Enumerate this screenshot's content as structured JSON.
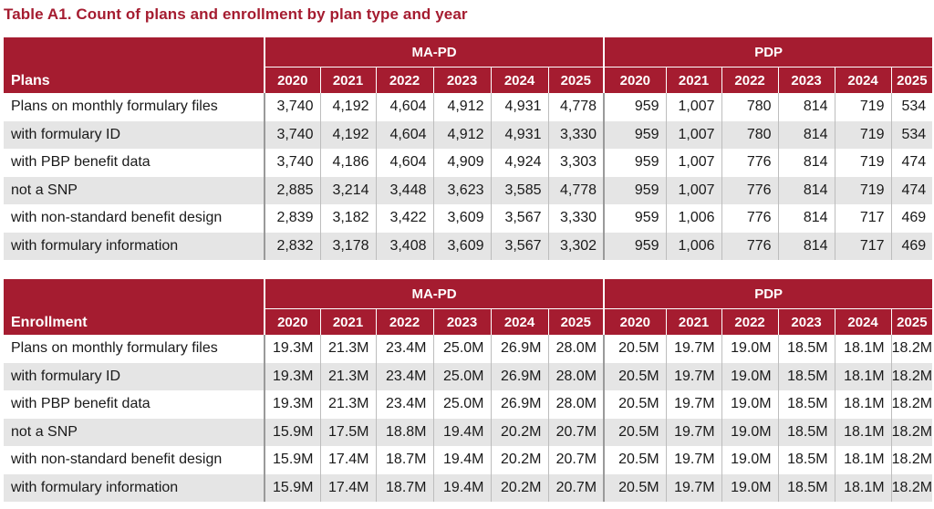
{
  "title": "Table A1. Count of plans and enrollment by plan type and year",
  "groups": {
    "ma_pd": "MA-PD",
    "pdp": "PDP"
  },
  "years": [
    "2020",
    "2021",
    "2022",
    "2023",
    "2024",
    "2025"
  ],
  "plans_table": {
    "label": "Plans",
    "rows": [
      {
        "label": "Plans on monthly formulary files",
        "ma_pd": [
          "3,740",
          "4,192",
          "4,604",
          "4,912",
          "4,931",
          "4,778"
        ],
        "pdp": [
          "959",
          "1,007",
          "780",
          "814",
          "719",
          "534"
        ]
      },
      {
        "label": "with formulary ID",
        "ma_pd": [
          "3,740",
          "4,192",
          "4,604",
          "4,912",
          "4,931",
          "3,330"
        ],
        "pdp": [
          "959",
          "1,007",
          "780",
          "814",
          "719",
          "534"
        ]
      },
      {
        "label": "with PBP benefit data",
        "ma_pd": [
          "3,740",
          "4,186",
          "4,604",
          "4,909",
          "4,924",
          "3,303"
        ],
        "pdp": [
          "959",
          "1,007",
          "776",
          "814",
          "719",
          "474"
        ]
      },
      {
        "label": "not a SNP",
        "ma_pd": [
          "2,885",
          "3,214",
          "3,448",
          "3,623",
          "3,585",
          "4,778"
        ],
        "pdp": [
          "959",
          "1,007",
          "776",
          "814",
          "719",
          "474"
        ]
      },
      {
        "label": "with non-standard benefit design",
        "ma_pd": [
          "2,839",
          "3,182",
          "3,422",
          "3,609",
          "3,567",
          "3,330"
        ],
        "pdp": [
          "959",
          "1,006",
          "776",
          "814",
          "717",
          "469"
        ]
      },
      {
        "label": "with formulary information",
        "ma_pd": [
          "2,832",
          "3,178",
          "3,408",
          "3,609",
          "3,567",
          "3,302"
        ],
        "pdp": [
          "959",
          "1,006",
          "776",
          "814",
          "717",
          "469"
        ]
      }
    ]
  },
  "enrollment_table": {
    "label": "Enrollment",
    "rows": [
      {
        "label": "Plans on monthly formulary files",
        "ma_pd": [
          "19.3M",
          "21.3M",
          "23.4M",
          "25.0M",
          "26.9M",
          "28.0M"
        ],
        "pdp": [
          "20.5M",
          "19.7M",
          "19.0M",
          "18.5M",
          "18.1M",
          "18.2M"
        ]
      },
      {
        "label": "with formulary ID",
        "ma_pd": [
          "19.3M",
          "21.3M",
          "23.4M",
          "25.0M",
          "26.9M",
          "28.0M"
        ],
        "pdp": [
          "20.5M",
          "19.7M",
          "19.0M",
          "18.5M",
          "18.1M",
          "18.2M"
        ]
      },
      {
        "label": "with PBP benefit data",
        "ma_pd": [
          "19.3M",
          "21.3M",
          "23.4M",
          "25.0M",
          "26.9M",
          "28.0M"
        ],
        "pdp": [
          "20.5M",
          "19.7M",
          "19.0M",
          "18.5M",
          "18.1M",
          "18.2M"
        ]
      },
      {
        "label": "not a SNP",
        "ma_pd": [
          "15.9M",
          "17.5M",
          "18.8M",
          "19.4M",
          "20.2M",
          "20.7M"
        ],
        "pdp": [
          "20.5M",
          "19.7M",
          "19.0M",
          "18.5M",
          "18.1M",
          "18.2M"
        ]
      },
      {
        "label": "with non-standard benefit design",
        "ma_pd": [
          "15.9M",
          "17.4M",
          "18.7M",
          "19.4M",
          "20.2M",
          "20.7M"
        ],
        "pdp": [
          "20.5M",
          "19.7M",
          "19.0M",
          "18.5M",
          "18.1M",
          "18.2M"
        ]
      },
      {
        "label": "with formulary information",
        "ma_pd": [
          "15.9M",
          "17.4M",
          "18.7M",
          "19.4M",
          "20.2M",
          "20.7M"
        ],
        "pdp": [
          "20.5M",
          "19.7M",
          "19.0M",
          "18.5M",
          "18.1M",
          "18.2M"
        ]
      }
    ]
  },
  "colors": {
    "header_bg": "#a51c30",
    "title": "#a51c30",
    "row_alt": "#e5e5e5"
  }
}
